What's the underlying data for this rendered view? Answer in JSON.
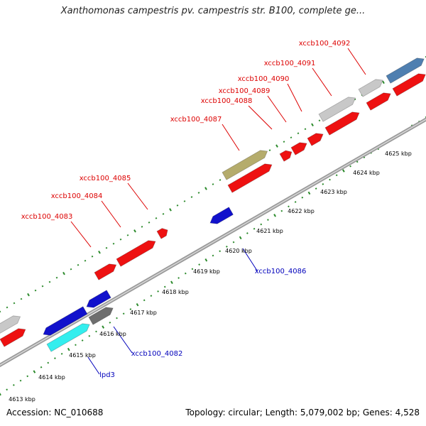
{
  "title": "Xanthomonas campestris pv. campestris str. B100, complete ge...",
  "footer": {
    "accession": "Accession: NC_010688",
    "summary": "Topology: circular; Length: 5,079,002 bp; Genes: 4,528"
  },
  "colors": {
    "background": "#ffffff",
    "backbone": "#9a9a9a",
    "tick": "#2b8a2b",
    "forward_gene": "#ee1111",
    "reverse_gene": "#1111cc",
    "gray_gene": "#c8c8c8",
    "dark_gray_gene": "#6e6e6e",
    "cyan_gene": "#33eeee",
    "olive_gene": "#b5ac6c",
    "steelblue_gene": "#4f7fb0",
    "forward_label": "#dd0000",
    "reverse_label": "#0000bb"
  },
  "scale": {
    "labels": [
      "4613 kbp",
      "4614 kbp",
      "4615 kbp",
      "4616 kbp",
      "4617 kbp",
      "4618 kbp",
      "4619 kbp",
      "4620 kbp",
      "4621 kbp",
      "4622 kbp",
      "4623 kbp",
      "4624 kbp",
      "4625 kbp"
    ]
  },
  "gene_labels": [
    {
      "name": "xccb100_4092",
      "strand": "forward"
    },
    {
      "name": "xccb100_4091",
      "strand": "forward"
    },
    {
      "name": "xccb100_4090",
      "strand": "forward"
    },
    {
      "name": "xccb100_4089",
      "strand": "forward"
    },
    {
      "name": "xccb100_4088",
      "strand": "forward"
    },
    {
      "name": "xccb100_4087",
      "strand": "forward"
    },
    {
      "name": "xccb100_4085",
      "strand": "forward"
    },
    {
      "name": "xccb100_4084",
      "strand": "forward"
    },
    {
      "name": "xccb100_4083",
      "strand": "forward"
    },
    {
      "name": "xccb100_4086",
      "strand": "reverse"
    },
    {
      "name": "xccb100_4082",
      "strand": "reverse"
    },
    {
      "name": "lpd3",
      "strand": "reverse"
    }
  ]
}
